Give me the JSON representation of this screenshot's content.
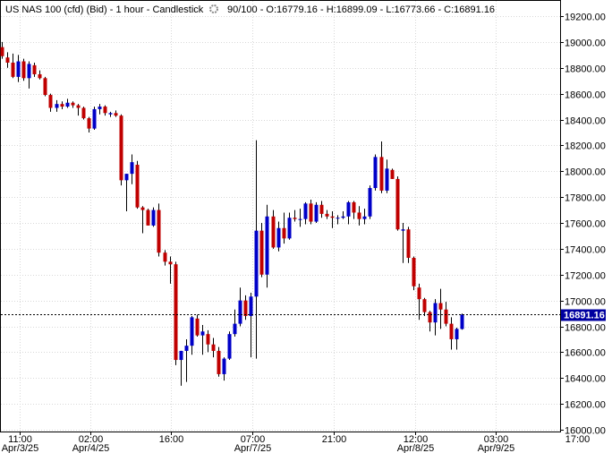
{
  "header": {
    "instrument": "US NAS 100 (cfd) (Bid) - 1 hour - Candlestick",
    "ohlc": "90/100 - O:16779.16 - H:16899.09 - L:16773.66 - C:16891.16"
  },
  "colors": {
    "up": "#0000c8",
    "down": "#c00000",
    "grid": "#d8d8d8",
    "current": "#0000a0"
  },
  "chart_data": {
    "type": "candlestick",
    "title": "US NAS 100 (cfd) (Bid) - 1 hour - Candlestick",
    "ylim": [
      16000,
      19300
    ],
    "y_ticks": [
      "19200.00",
      "19000.00",
      "18800.00",
      "18600.00",
      "18400.00",
      "18200.00",
      "18000.00",
      "17800.00",
      "17600.00",
      "17400.00",
      "17200.00",
      "17000.00",
      "16800.00",
      "16600.00",
      "16400.00",
      "16200.00",
      "16000.00"
    ],
    "x_ticks": [
      {
        "index": 0,
        "time": "11:00",
        "date": "Apr/3/25"
      },
      {
        "index": 13,
        "time": "02:00",
        "date": "Apr/4/25"
      },
      {
        "index": 28,
        "time": "16:00",
        "date": ""
      },
      {
        "index": 43,
        "time": "07:00",
        "date": "Apr/7/25"
      },
      {
        "index": 58,
        "time": "21:00",
        "date": ""
      },
      {
        "index": 73,
        "time": "12:00",
        "date": "Apr/8/25"
      },
      {
        "index": 88,
        "time": "03:00",
        "date": "Apr/9/25"
      },
      {
        "index": 103,
        "time": "17:00",
        "date": ""
      }
    ],
    "current_price": 16891.16,
    "current_label": "16891.16",
    "candles": [
      {
        "o": 18960,
        "h": 19000,
        "l": 18870,
        "c": 18890
      },
      {
        "o": 18880,
        "h": 18920,
        "l": 18800,
        "c": 18840
      },
      {
        "o": 18840,
        "h": 18910,
        "l": 18720,
        "c": 18730
      },
      {
        "o": 18730,
        "h": 18900,
        "l": 18690,
        "c": 18850
      },
      {
        "o": 18850,
        "h": 18870,
        "l": 18700,
        "c": 18720
      },
      {
        "o": 18720,
        "h": 18850,
        "l": 18640,
        "c": 18830
      },
      {
        "o": 18820,
        "h": 18840,
        "l": 18730,
        "c": 18750
      },
      {
        "o": 18750,
        "h": 18780,
        "l": 18710,
        "c": 18720
      },
      {
        "o": 18720,
        "h": 18730,
        "l": 18580,
        "c": 18590
      },
      {
        "o": 18590,
        "h": 18600,
        "l": 18460,
        "c": 18490
      },
      {
        "o": 18490,
        "h": 18550,
        "l": 18460,
        "c": 18520
      },
      {
        "o": 18520,
        "h": 18540,
        "l": 18480,
        "c": 18500
      },
      {
        "o": 18500,
        "h": 18560,
        "l": 18490,
        "c": 18530
      },
      {
        "o": 18530,
        "h": 18540,
        "l": 18490,
        "c": 18510
      },
      {
        "o": 18510,
        "h": 18520,
        "l": 18430,
        "c": 18490
      },
      {
        "o": 18490,
        "h": 18500,
        "l": 18400,
        "c": 18410
      },
      {
        "o": 18410,
        "h": 18420,
        "l": 18300,
        "c": 18330
      },
      {
        "o": 18330,
        "h": 18500,
        "l": 18320,
        "c": 18480
      },
      {
        "o": 18480,
        "h": 18520,
        "l": 18440,
        "c": 18500
      },
      {
        "o": 18500,
        "h": 18510,
        "l": 18430,
        "c": 18450
      },
      {
        "o": 18440,
        "h": 18460,
        "l": 18420,
        "c": 18450
      },
      {
        "o": 18450,
        "h": 18470,
        "l": 18420,
        "c": 18430
      },
      {
        "o": 18430,
        "h": 18440,
        "l": 17890,
        "c": 17930
      },
      {
        "o": 17930,
        "h": 17980,
        "l": 17690,
        "c": 17980
      },
      {
        "o": 17980,
        "h": 18130,
        "l": 17900,
        "c": 18070
      },
      {
        "o": 18050,
        "h": 18080,
        "l": 17710,
        "c": 17720
      },
      {
        "o": 17720,
        "h": 17730,
        "l": 17520,
        "c": 17700
      },
      {
        "o": 17700,
        "h": 17710,
        "l": 17580,
        "c": 17580
      },
      {
        "o": 17580,
        "h": 17720,
        "l": 17570,
        "c": 17700
      },
      {
        "o": 17700,
        "h": 17750,
        "l": 17340,
        "c": 17370
      },
      {
        "o": 17370,
        "h": 17390,
        "l": 17270,
        "c": 17300
      },
      {
        "o": 17300,
        "h": 17340,
        "l": 17130,
        "c": 17280
      },
      {
        "o": 17280,
        "h": 17300,
        "l": 16500,
        "c": 16540
      },
      {
        "o": 16540,
        "h": 16610,
        "l": 16340,
        "c": 16610
      },
      {
        "o": 16610,
        "h": 16700,
        "l": 16370,
        "c": 16650
      },
      {
        "o": 16650,
        "h": 16880,
        "l": 16580,
        "c": 16870
      },
      {
        "o": 16860,
        "h": 16890,
        "l": 16720,
        "c": 16730
      },
      {
        "o": 16730,
        "h": 16810,
        "l": 16580,
        "c": 16760
      },
      {
        "o": 16740,
        "h": 16770,
        "l": 16600,
        "c": 16660
      },
      {
        "o": 16660,
        "h": 16710,
        "l": 16560,
        "c": 16610
      },
      {
        "o": 16610,
        "h": 16640,
        "l": 16410,
        "c": 16430
      },
      {
        "o": 16430,
        "h": 16560,
        "l": 16380,
        "c": 16550
      },
      {
        "o": 16550,
        "h": 16760,
        "l": 16540,
        "c": 16740
      },
      {
        "o": 16740,
        "h": 16930,
        "l": 16720,
        "c": 16820
      },
      {
        "o": 16820,
        "h": 17100,
        "l": 16800,
        "c": 17000
      },
      {
        "o": 17000,
        "h": 17040,
        "l": 16850,
        "c": 16880
      },
      {
        "o": 16880,
        "h": 17060,
        "l": 16560,
        "c": 17030
      },
      {
        "o": 17030,
        "h": 18240,
        "l": 16550,
        "c": 17540
      },
      {
        "o": 17540,
        "h": 17600,
        "l": 17180,
        "c": 17200
      },
      {
        "o": 17200,
        "h": 17740,
        "l": 17100,
        "c": 17650
      },
      {
        "o": 17650,
        "h": 17700,
        "l": 17400,
        "c": 17410
      },
      {
        "o": 17410,
        "h": 17610,
        "l": 17380,
        "c": 17560
      },
      {
        "o": 17560,
        "h": 17680,
        "l": 17440,
        "c": 17480
      },
      {
        "o": 17480,
        "h": 17680,
        "l": 17470,
        "c": 17640
      },
      {
        "o": 17640,
        "h": 17700,
        "l": 17610,
        "c": 17630
      },
      {
        "o": 17630,
        "h": 17710,
        "l": 17570,
        "c": 17630
      },
      {
        "o": 17630,
        "h": 17760,
        "l": 17590,
        "c": 17750
      },
      {
        "o": 17750,
        "h": 17780,
        "l": 17590,
        "c": 17610
      },
      {
        "o": 17610,
        "h": 17760,
        "l": 17600,
        "c": 17740
      },
      {
        "o": 17740,
        "h": 17770,
        "l": 17640,
        "c": 17670
      },
      {
        "o": 17670,
        "h": 17700,
        "l": 17630,
        "c": 17650
      },
      {
        "o": 17650,
        "h": 17690,
        "l": 17560,
        "c": 17640
      },
      {
        "o": 17640,
        "h": 17660,
        "l": 17590,
        "c": 17640
      },
      {
        "o": 17640,
        "h": 17690,
        "l": 17630,
        "c": 17650
      },
      {
        "o": 17650,
        "h": 17770,
        "l": 17590,
        "c": 17760
      },
      {
        "o": 17760,
        "h": 17770,
        "l": 17630,
        "c": 17680
      },
      {
        "o": 17680,
        "h": 17730,
        "l": 17580,
        "c": 17630
      },
      {
        "o": 17630,
        "h": 17710,
        "l": 17590,
        "c": 17650
      },
      {
        "o": 17650,
        "h": 17890,
        "l": 17630,
        "c": 17870
      },
      {
        "o": 17870,
        "h": 18130,
        "l": 17850,
        "c": 18110
      },
      {
        "o": 18110,
        "h": 18230,
        "l": 17830,
        "c": 17850
      },
      {
        "o": 17850,
        "h": 18090,
        "l": 17830,
        "c": 18020
      },
      {
        "o": 18010,
        "h": 18020,
        "l": 17940,
        "c": 17940
      },
      {
        "o": 17940,
        "h": 17960,
        "l": 17540,
        "c": 17550
      },
      {
        "o": 17540,
        "h": 17600,
        "l": 17290,
        "c": 17550
      },
      {
        "o": 17550,
        "h": 17570,
        "l": 17290,
        "c": 17330
      },
      {
        "o": 17330,
        "h": 17340,
        "l": 17080,
        "c": 17110
      },
      {
        "o": 17100,
        "h": 17130,
        "l": 16850,
        "c": 17010
      },
      {
        "o": 17010,
        "h": 17020,
        "l": 16880,
        "c": 16910
      },
      {
        "o": 16910,
        "h": 16920,
        "l": 16760,
        "c": 16830
      },
      {
        "o": 16830,
        "h": 17010,
        "l": 16730,
        "c": 16980
      },
      {
        "o": 16980,
        "h": 17090,
        "l": 16780,
        "c": 16930
      },
      {
        "o": 16930,
        "h": 16990,
        "l": 16800,
        "c": 16820
      },
      {
        "o": 16820,
        "h": 16870,
        "l": 16620,
        "c": 16700
      },
      {
        "o": 16700,
        "h": 16790,
        "l": 16620,
        "c": 16780
      },
      {
        "o": 16779.16,
        "h": 16899.09,
        "l": 16773.66,
        "c": 16891.16
      }
    ]
  }
}
